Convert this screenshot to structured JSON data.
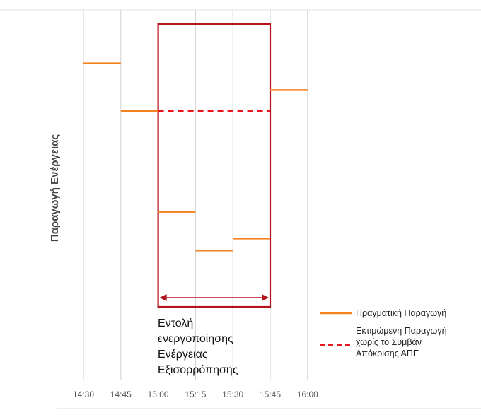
{
  "chart_data": {
    "type": "line",
    "ylabel": "Παραγωγή Ενέργειας",
    "xlabel": "",
    "categories": [
      "14:30",
      "14:45",
      "15:00",
      "15:15",
      "15:30",
      "15:45",
      "16:00"
    ],
    "ylim": [
      0,
      100
    ],
    "grid": true,
    "series": [
      {
        "name": "Πραγματική Παραγωγή",
        "style": "solid",
        "color": "#F58220",
        "segments": [
          {
            "from": "14:30",
            "to": "14:45",
            "value": 82
          },
          {
            "from": "14:45",
            "to": "15:00",
            "value": 66
          },
          {
            "from": "15:00",
            "to": "15:15",
            "value": 32
          },
          {
            "from": "15:15",
            "to": "15:30",
            "value": 19
          },
          {
            "from": "15:30",
            "to": "15:45",
            "value": 23
          },
          {
            "from": "15:45",
            "to": "16:00",
            "value": 73
          }
        ]
      },
      {
        "name": "Εκτιμώμενη Παραγωγή χωρίς το Συμβάν Απόκρισης ΑΠΕ",
        "style": "dashed",
        "color": "#E8141B",
        "segments": [
          {
            "from": "15:00",
            "to": "15:45",
            "value": 66
          }
        ]
      }
    ],
    "highlight": {
      "from": "15:00",
      "to": "15:45",
      "color": "#B5121B",
      "label_lines": [
        "Εντολή",
        "ενεργοποίησης",
        "Ενέργειας",
        "Εξισορρόπησης"
      ]
    },
    "legend": {
      "position": "bottom-right",
      "entries": [
        {
          "lines": [
            "Πραγματική Παραγωγή"
          ],
          "style": "solid",
          "color": "#F58220"
        },
        {
          "lines": [
            "Εκτιμώμενη Παραγωγή",
            "χωρίς το Συμβάν",
            "Απόκρισης ΑΠΕ"
          ],
          "style": "dashed",
          "color": "#E8141B"
        }
      ]
    }
  }
}
